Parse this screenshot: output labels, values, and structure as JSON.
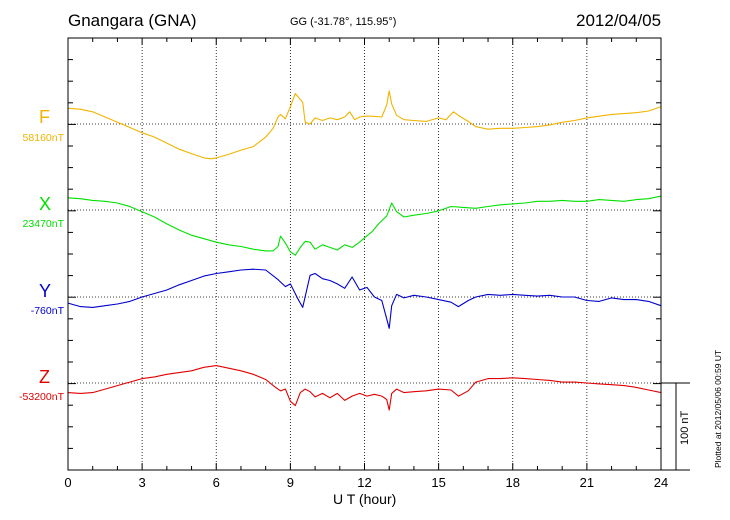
{
  "header": {
    "station": "Gnangara (GNA)",
    "coords": "GG (-31.78°, 115.95°)",
    "date": "2012/04/05"
  },
  "footer": {
    "plotted": "Plotted at 2012/05/06 00:59 UT",
    "scale_label": "100 nT"
  },
  "chart_data": {
    "type": "line",
    "title": "Gnangara (GNA)",
    "xlabel": "U T (hour)",
    "ylabel": "",
    "xlim": [
      0,
      24
    ],
    "xticks": [
      0,
      3,
      6,
      9,
      12,
      15,
      18,
      21,
      24
    ],
    "xtick_labels": [
      "0",
      "3",
      "6",
      "9",
      "12",
      "15",
      "18",
      "21",
      "24"
    ],
    "grid": true,
    "units": "nT",
    "scale_bar_nT": 100,
    "series": [
      {
        "name": "F",
        "baseline_label": "58160nT",
        "baseline": 58160,
        "color": "#f0b400",
        "x": [
          0,
          0.5,
          1,
          1.5,
          2,
          2.5,
          3,
          3.5,
          4,
          4.5,
          5,
          5.5,
          5.8,
          6,
          6.5,
          7,
          7.5,
          8,
          8.3,
          8.5,
          8.6,
          8.8,
          9,
          9.2,
          9.5,
          9.6,
          9.8,
          10,
          10.3,
          10.6,
          10.9,
          11.2,
          11.4,
          11.6,
          11.8,
          12,
          12.3,
          12.7,
          12.9,
          13.0,
          13.1,
          13.3,
          13.6,
          14,
          14.5,
          15,
          15.3,
          15.6,
          15.9,
          16.2,
          16.5,
          17,
          17.5,
          18,
          18.5,
          19,
          19.5,
          20,
          20.5,
          21,
          21.5,
          22,
          22.5,
          23,
          23.5,
          24
        ],
        "values": [
          58178,
          58177,
          58174,
          58168,
          58162,
          58156,
          58150,
          58145,
          58138,
          58131,
          58126,
          58121,
          58120,
          58121,
          58125,
          58130,
          58134,
          58145,
          58155,
          58168,
          58171,
          58166,
          58180,
          58195,
          58185,
          58162,
          58160,
          58167,
          58164,
          58167,
          58165,
          58168,
          58174,
          58165,
          58168,
          58169,
          58169,
          58168,
          58182,
          58198,
          58183,
          58170,
          58165,
          58164,
          58163,
          58167,
          58165,
          58174,
          58168,
          58163,
          58157,
          58154,
          58155,
          58155,
          58156,
          58157,
          58159,
          58162,
          58164,
          58167,
          58169,
          58171,
          58172,
          58173,
          58175,
          58180
        ]
      },
      {
        "name": "X",
        "baseline_label": "23470nT",
        "baseline": 23470,
        "color": "#00e000",
        "x": [
          0,
          0.5,
          1,
          1.5,
          2,
          2.5,
          3,
          3.5,
          4,
          4.5,
          5,
          5.5,
          6,
          6.5,
          7,
          7.5,
          8,
          8.3,
          8.5,
          8.6,
          8.8,
          9,
          9.2,
          9.4,
          9.6,
          9.8,
          10,
          10.3,
          10.6,
          10.9,
          11.2,
          11.5,
          11.8,
          12,
          12.3,
          12.6,
          12.9,
          13.1,
          13.3,
          13.6,
          14,
          14.5,
          15,
          15.5,
          16,
          16.5,
          17,
          17.5,
          18,
          18.5,
          19,
          19.5,
          20,
          20.5,
          21,
          21.5,
          22,
          22.5,
          23,
          23.5,
          24
        ],
        "values": [
          23484,
          23483,
          23481,
          23480,
          23478,
          23474,
          23468,
          23462,
          23454,
          23447,
          23441,
          23437,
          23433,
          23430,
          23428,
          23425,
          23423,
          23423,
          23428,
          23440,
          23432,
          23422,
          23418,
          23427,
          23434,
          23433,
          23425,
          23430,
          23427,
          23424,
          23430,
          23427,
          23433,
          23438,
          23445,
          23455,
          23463,
          23478,
          23468,
          23462,
          23464,
          23466,
          23469,
          23474,
          23473,
          23472,
          23474,
          23476,
          23477,
          23478,
          23480,
          23480,
          23481,
          23480,
          23480,
          23482,
          23481,
          23480,
          23482,
          23483,
          23486
        ]
      },
      {
        "name": "Y",
        "baseline_label": "-760nT",
        "baseline": -760,
        "color": "#0000cc",
        "x": [
          0,
          0.5,
          1,
          1.5,
          2,
          2.5,
          3,
          3.5,
          4,
          4.5,
          5,
          5.5,
          6,
          6.5,
          7,
          7.5,
          8,
          8.5,
          8.8,
          9,
          9.3,
          9.5,
          9.8,
          10,
          10.3,
          10.6,
          10.9,
          11.2,
          11.5,
          11.8,
          12.1,
          12.4,
          12.7,
          12.9,
          13.0,
          13.1,
          13.3,
          13.6,
          14,
          14.5,
          15,
          15.5,
          15.8,
          16.2,
          16.5,
          17,
          17.5,
          18,
          18.5,
          19,
          19.5,
          20,
          20.5,
          21,
          21.5,
          22,
          22.5,
          23,
          23.5,
          24
        ],
        "values": [
          -767,
          -771,
          -772,
          -770,
          -768,
          -765,
          -760,
          -756,
          -752,
          -746,
          -741,
          -736,
          -733,
          -731,
          -729,
          -728,
          -729,
          -740,
          -748,
          -745,
          -762,
          -772,
          -735,
          -733,
          -739,
          -741,
          -745,
          -750,
          -737,
          -752,
          -749,
          -760,
          -764,
          -785,
          -796,
          -770,
          -757,
          -761,
          -758,
          -760,
          -763,
          -766,
          -771,
          -764,
          -760,
          -757,
          -758,
          -757,
          -758,
          -759,
          -758,
          -760,
          -760,
          -764,
          -765,
          -761,
          -763,
          -763,
          -765,
          -770
        ]
      },
      {
        "name": "Z",
        "baseline_label": "-53200nT",
        "baseline": -53200,
        "color": "#e00000",
        "x": [
          0,
          0.5,
          1,
          1.5,
          2,
          2.5,
          3,
          3.5,
          4,
          4.5,
          5,
          5.5,
          6,
          6.5,
          7,
          7.5,
          8,
          8.4,
          8.6,
          8.8,
          9,
          9.2,
          9.4,
          9.6,
          9.8,
          10,
          10.3,
          10.6,
          10.9,
          11.2,
          11.5,
          11.8,
          12.1,
          12.4,
          12.7,
          12.9,
          13.0,
          13.1,
          13.3,
          13.6,
          14,
          14.5,
          15,
          15.5,
          15.8,
          16.2,
          16.5,
          17,
          17.5,
          18,
          18.5,
          19,
          19.5,
          20,
          20.5,
          21,
          21.5,
          22,
          22.5,
          23,
          23.5,
          24
        ],
        "values": [
          -53211,
          -53212,
          -53211,
          -53207,
          -53203,
          -53199,
          -53195,
          -53193,
          -53190,
          -53188,
          -53186,
          -53182,
          -53180,
          -53183,
          -53186,
          -53190,
          -53196,
          -53205,
          -53209,
          -53207,
          -53221,
          -53226,
          -53211,
          -53207,
          -53210,
          -53216,
          -53212,
          -53217,
          -53212,
          -53220,
          -53215,
          -53212,
          -53215,
          -53213,
          -53215,
          -53219,
          -53231,
          -53212,
          -53207,
          -53211,
          -53210,
          -53209,
          -53207,
          -53208,
          -53215,
          -53209,
          -53199,
          -53195,
          -53195,
          -53194,
          -53195,
          -53196,
          -53197,
          -53199,
          -53199,
          -53200,
          -53201,
          -53202,
          -53203,
          -53205,
          -53208,
          -53211
        ]
      }
    ]
  }
}
